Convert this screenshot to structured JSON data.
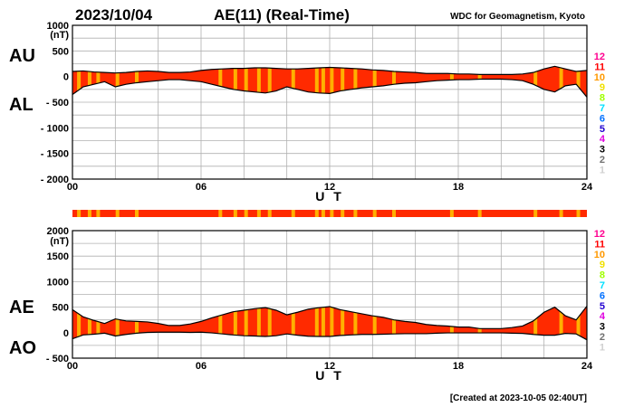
{
  "header": {
    "date": "2023/10/04",
    "title": "AE(11) (Real-Time)",
    "source": "WDC for Geomagnetism, Kyoto"
  },
  "footer": {
    "created": "[Created at 2023-10-05 02:40UT]"
  },
  "colors": {
    "fill": "#ff2a00",
    "highlight": "#ffb000",
    "line": "#000000",
    "grid": "#b0b0b0"
  },
  "legend": {
    "items": [
      {
        "label": "12",
        "color": "#ff0090"
      },
      {
        "label": "11",
        "color": "#ff0000"
      },
      {
        "label": "10",
        "color": "#ff9900"
      },
      {
        "label": "9",
        "color": "#f0e000"
      },
      {
        "label": "8",
        "color": "#a0ff00"
      },
      {
        "label": "7",
        "color": "#00e0ff"
      },
      {
        "label": "6",
        "color": "#0070ff"
      },
      {
        "label": "5",
        "color": "#2000d0"
      },
      {
        "label": "4",
        "color": "#e000e0"
      },
      {
        "label": "3",
        "color": "#000000"
      },
      {
        "label": "2",
        "color": "#707070"
      },
      {
        "label": "1",
        "color": "#d0d0d0"
      }
    ]
  },
  "chart_data": [
    {
      "type": "area",
      "series_labels": [
        "AU",
        "AL"
      ],
      "unit": "(nT)",
      "xlabel": "U T",
      "xlim": [
        0,
        24
      ],
      "ylim": [
        -2000,
        1000
      ],
      "x_ticks": [
        "00",
        "06",
        "12",
        "18",
        "24"
      ],
      "y_ticks": [
        "1000",
        "500",
        "0",
        "- 500",
        "- 1000",
        "- 1500",
        "- 2000"
      ],
      "grid": true,
      "hours": [
        0,
        0.5,
        1,
        1.5,
        2,
        2.5,
        3,
        3.5,
        4,
        4.5,
        5,
        5.5,
        6,
        6.5,
        7,
        7.5,
        8,
        8.5,
        9,
        9.5,
        10,
        10.5,
        11,
        11.5,
        12,
        12.5,
        13,
        13.5,
        14,
        14.5,
        15,
        15.5,
        16,
        16.5,
        17,
        17.5,
        18,
        18.5,
        19,
        19.5,
        20,
        20.5,
        21,
        21.5,
        22,
        22.5,
        23,
        23.5,
        24
      ],
      "series": [
        {
          "name": "AU",
          "values": [
            100,
            110,
            90,
            80,
            70,
            80,
            100,
            110,
            100,
            80,
            80,
            90,
            120,
            140,
            150,
            160,
            160,
            170,
            170,
            160,
            150,
            150,
            160,
            170,
            180,
            170,
            160,
            150,
            130,
            120,
            100,
            90,
            80,
            60,
            60,
            60,
            50,
            50,
            40,
            40,
            40,
            40,
            50,
            80,
            150,
            200,
            150,
            100,
            120
          ]
        },
        {
          "name": "AL",
          "values": [
            -350,
            -200,
            -150,
            -100,
            -200,
            -150,
            -120,
            -100,
            -80,
            -60,
            -60,
            -80,
            -100,
            -150,
            -200,
            -250,
            -280,
            -300,
            -320,
            -280,
            -200,
            -250,
            -300,
            -320,
            -330,
            -280,
            -250,
            -220,
            -200,
            -180,
            -150,
            -130,
            -120,
            -100,
            -80,
            -70,
            -60,
            -60,
            -50,
            -50,
            -50,
            -60,
            -80,
            -150,
            -250,
            -300,
            -180,
            -150,
            -400
          ]
        }
      ],
      "highlight_hours": [
        0.3,
        0.8,
        1.2,
        2.1,
        3.0,
        6.9,
        7.6,
        8.1,
        8.7,
        9.2,
        10.3,
        11.4,
        11.7,
        12.1,
        12.6,
        13.2,
        14.1,
        15.0,
        17.7,
        19.0,
        21.6,
        22.8,
        23.6
      ]
    },
    {
      "type": "area",
      "series_labels": [
        "AE",
        "AO"
      ],
      "unit": "(nT)",
      "xlabel": "U T",
      "xlim": [
        0,
        24
      ],
      "ylim": [
        -500,
        2000
      ],
      "x_ticks": [
        "00",
        "06",
        "12",
        "18",
        "24"
      ],
      "y_ticks": [
        "2000",
        "1500",
        "1000",
        "500",
        "0",
        "- 500"
      ],
      "grid": true,
      "hours": [
        0,
        0.5,
        1,
        1.5,
        2,
        2.5,
        3,
        3.5,
        4,
        4.5,
        5,
        5.5,
        6,
        6.5,
        7,
        7.5,
        8,
        8.5,
        9,
        9.5,
        10,
        10.5,
        11,
        11.5,
        12,
        12.5,
        13,
        13.5,
        14,
        14.5,
        15,
        15.5,
        16,
        16.5,
        17,
        17.5,
        18,
        18.5,
        19,
        19.5,
        20,
        20.5,
        21,
        21.5,
        22,
        22.5,
        23,
        23.5,
        24
      ],
      "series": [
        {
          "name": "AE",
          "values": [
            450,
            310,
            240,
            180,
            270,
            230,
            220,
            210,
            180,
            140,
            140,
            170,
            220,
            290,
            350,
            410,
            440,
            470,
            490,
            440,
            350,
            400,
            460,
            490,
            510,
            450,
            410,
            370,
            330,
            300,
            250,
            220,
            200,
            160,
            140,
            130,
            110,
            110,
            80,
            80,
            80,
            100,
            130,
            230,
            400,
            500,
            330,
            250,
            520
          ]
        },
        {
          "name": "AO",
          "values": [
            -120,
            -45,
            -30,
            -10,
            -65,
            -35,
            -10,
            5,
            10,
            10,
            10,
            5,
            10,
            -5,
            -25,
            -45,
            -60,
            -65,
            -75,
            -60,
            -25,
            -50,
            -70,
            -75,
            -75,
            -55,
            -45,
            -35,
            -35,
            -30,
            -25,
            -20,
            -20,
            -20,
            -10,
            -5,
            -5,
            -5,
            -5,
            -5,
            -5,
            -10,
            -15,
            -35,
            -50,
            -50,
            -15,
            -25,
            -140
          ]
        }
      ],
      "highlight_hours": [
        0.3,
        0.8,
        1.2,
        2.1,
        3.0,
        6.9,
        7.6,
        8.1,
        8.7,
        9.2,
        10.3,
        11.4,
        11.7,
        12.1,
        12.6,
        13.2,
        14.1,
        15.0,
        17.7,
        19.0,
        21.6,
        22.8,
        23.6
      ]
    }
  ]
}
